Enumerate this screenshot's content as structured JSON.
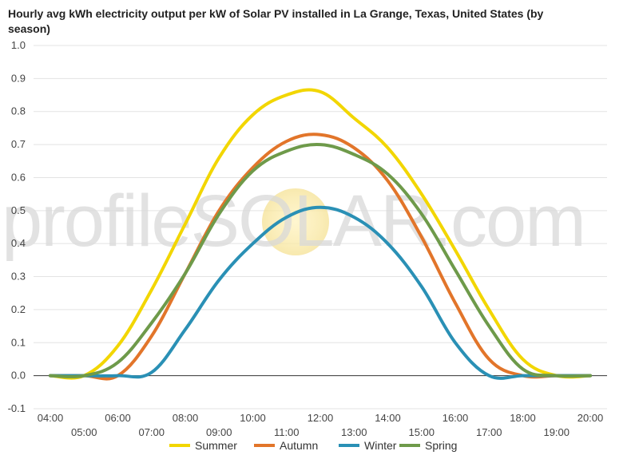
{
  "chart_data": {
    "type": "line",
    "title": "Hourly avg kWh electricity output per kW of Solar PV installed in La Grange, Texas, United States (by season)",
    "watermark": "profileSOLAR.com",
    "ylim": [
      -0.1,
      1.0
    ],
    "yticks": [
      "1.0",
      "0.9",
      "0.8",
      "0.7",
      "0.6",
      "0.5",
      "0.4",
      "0.3",
      "0.2",
      "0.1",
      "0.0",
      "-0.1"
    ],
    "x": [
      "04:00",
      "05:00",
      "06:00",
      "07:00",
      "08:00",
      "09:00",
      "10:00",
      "11:00",
      "12:00",
      "13:00",
      "14:00",
      "15:00",
      "16:00",
      "17:00",
      "18:00",
      "19:00",
      "20:00"
    ],
    "grid": true,
    "legend_position": "bottom",
    "series": [
      {
        "name": "Summer",
        "color": "#f2d600",
        "values": [
          0.0,
          0.0,
          0.09,
          0.26,
          0.46,
          0.66,
          0.79,
          0.85,
          0.86,
          0.78,
          0.69,
          0.55,
          0.38,
          0.2,
          0.05,
          0.0,
          0.0
        ]
      },
      {
        "name": "Autumn",
        "color": "#e2752a",
        "values": [
          0.0,
          0.0,
          0.0,
          0.12,
          0.31,
          0.5,
          0.63,
          0.71,
          0.73,
          0.69,
          0.59,
          0.42,
          0.22,
          0.05,
          0.0,
          0.0,
          0.0
        ]
      },
      {
        "name": "Winter",
        "color": "#2a90b5",
        "values": [
          0.0,
          0.0,
          0.0,
          0.01,
          0.14,
          0.29,
          0.4,
          0.48,
          0.51,
          0.48,
          0.4,
          0.27,
          0.1,
          0.0,
          0.0,
          0.0,
          0.0
        ]
      },
      {
        "name": "Spring",
        "color": "#6e9a4a",
        "values": [
          0.0,
          0.0,
          0.04,
          0.16,
          0.31,
          0.49,
          0.62,
          0.68,
          0.7,
          0.67,
          0.61,
          0.49,
          0.32,
          0.15,
          0.02,
          0.0,
          0.0
        ]
      }
    ]
  }
}
